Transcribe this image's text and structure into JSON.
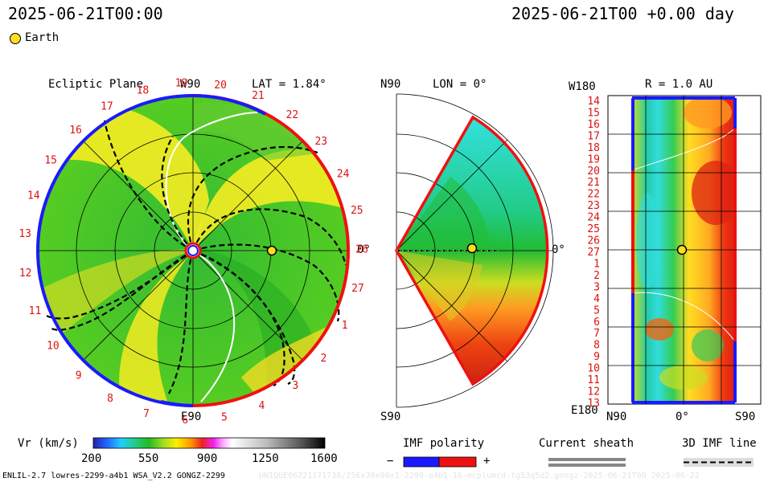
{
  "header": {
    "time_left": "2025-06-21T00:00",
    "time_right": "2025-06-21T00 +0.00 day"
  },
  "legend": {
    "earth_label": "Earth"
  },
  "panel_ecliptic": {
    "title": "Ecliptic Plane",
    "top_label": "W90",
    "lat_label": "LAT = 1.84°",
    "bottom_label": "E90",
    "right_label": "0°",
    "carrington_numbers": [
      "13",
      "14",
      "15",
      "16",
      "17",
      "18",
      "19",
      "20",
      "21",
      "22",
      "23",
      "24",
      "25",
      "26",
      "27",
      "1",
      "2",
      "3",
      "4",
      "5",
      "6",
      "7",
      "8",
      "9",
      "10",
      "11",
      "12"
    ]
  },
  "panel_meridional": {
    "top_label": "N90",
    "lon_label": "LON = 0°",
    "bottom_label": "S90",
    "right_label": "0°"
  },
  "panel_r": {
    "top_left_label": "W180",
    "r_label": "R = 1.0 AU",
    "bottom_left_label": "E180",
    "x_labels": [
      "N90",
      "0°",
      "S90"
    ],
    "y_labels": [
      "14",
      "15",
      "16",
      "17",
      "18",
      "19",
      "20",
      "21",
      "22",
      "23",
      "24",
      "25",
      "26",
      "27",
      "1",
      "2",
      "3",
      "4",
      "5",
      "6",
      "7",
      "8",
      "9",
      "10",
      "11",
      "12",
      "13"
    ]
  },
  "colorbar": {
    "title": "Vr (km/s)",
    "ticks": [
      "200",
      "550",
      "900",
      "1250",
      "1600"
    ]
  },
  "imf_polarity": {
    "title": "IMF polarity",
    "minus": "−",
    "plus": "+"
  },
  "current_sheath": {
    "title": "Current sheath"
  },
  "imf_line": {
    "title": "3D IMF line"
  },
  "footer": {
    "left": "ENLIL-2.7 lowres-2299-a4b1 WSA_V2.2 GONGZ-2299",
    "right_faint": "UNIQUE06221171736/256x30x90x1-2299-a4b1-16-mcplumcd-tg53q5d2.gongz-2025-06-21T00 2025-06-22"
  },
  "colors": {
    "blue_polarity": "#1a1aff",
    "red_polarity": "#ee1111",
    "green_field": "#22bb22",
    "yellow_field": "#ffee00"
  }
}
